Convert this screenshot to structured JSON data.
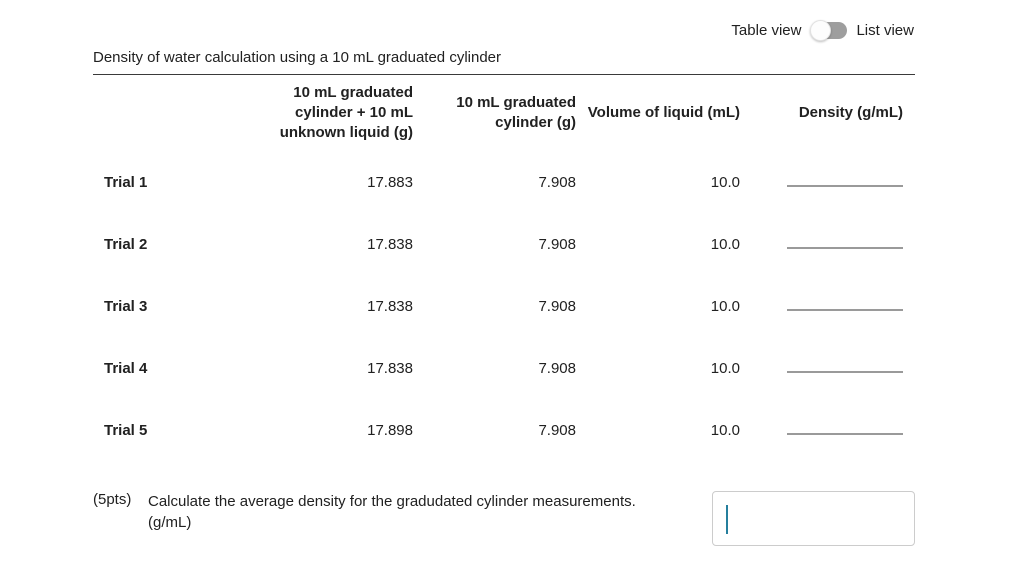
{
  "view_toggle": {
    "table_label": "Table view",
    "list_label": "List view",
    "state": "table"
  },
  "table": {
    "title": "Density of water calculation using a 10 mL graduated cylinder",
    "columns": [
      "",
      "10 mL graduated cylinder + 10 mL unknown liquid (g)",
      "10 mL graduated cylinder (g)",
      "Volume of liquid (mL)",
      "Density (g/mL)"
    ],
    "rows": [
      {
        "label": "Trial 1",
        "mass_total": "17.883",
        "mass_cylinder": "7.908",
        "volume": "10.0",
        "density": ""
      },
      {
        "label": "Trial 2",
        "mass_total": "17.838",
        "mass_cylinder": "7.908",
        "volume": "10.0",
        "density": ""
      },
      {
        "label": "Trial 3",
        "mass_total": "17.838",
        "mass_cylinder": "7.908",
        "volume": "10.0",
        "density": ""
      },
      {
        "label": "Trial 4",
        "mass_total": "17.838",
        "mass_cylinder": "7.908",
        "volume": "10.0",
        "density": ""
      },
      {
        "label": "Trial 5",
        "mass_total": "17.898",
        "mass_cylinder": "7.908",
        "volume": "10.0",
        "density": ""
      }
    ]
  },
  "question": {
    "points": "(5pts)",
    "text": "Calculate the average density for the gradudated cylinder measurements.",
    "unit": "(g/mL)",
    "answer_value": ""
  },
  "colors": {
    "caret": "#257f9d",
    "toggle_track": "#9e9e9e",
    "blank_line": "#9a9a9a",
    "answer_border": "#cccccc",
    "text": "#212121"
  }
}
